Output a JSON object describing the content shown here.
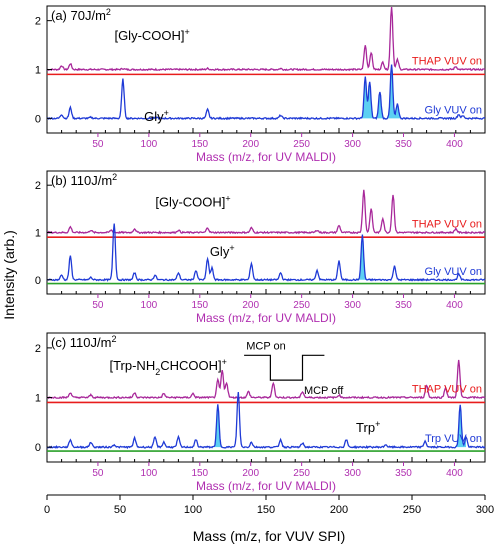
{
  "colors": {
    "thap": "#a8289a",
    "gly": "#1f3ad6",
    "red": "#e81c1c",
    "green": "#2aa02a",
    "fill": "#3fc8f0",
    "top_axis": "#b02fb0"
  },
  "chart_data": {
    "type": "line",
    "xlabel": "Mass (m/z, for VUV SPI)",
    "ylabel": "Intensity (arb.)",
    "xlim": [
      0,
      300
    ],
    "x_ticks": [
      "0",
      "50",
      "100",
      "150",
      "200",
      "250",
      "300"
    ],
    "top_axis_label": "Mass (m/z, for UV MALDI)",
    "top_axis_ticks": [
      "50",
      "100",
      "150",
      "200",
      "250",
      "300",
      "350",
      "400"
    ],
    "panels": [
      {
        "label": "(a) 70J/m",
        "label_sup": "2",
        "ylim": [
          -0.3,
          2.3
        ],
        "y_ticks": [
          "0",
          "1",
          "2"
        ],
        "series": [
          {
            "name": "THAP VUV on",
            "color": "thap",
            "baseline": 1.0,
            "peaks": [
              [
                10,
                0.08
              ],
              [
                16,
                0.12
              ],
              [
                52,
                0.02
              ],
              [
                110,
                0.02
              ],
              [
                160,
                0.02
              ],
              [
                218,
                0.5
              ],
              [
                222,
                0.35
              ],
              [
                230,
                0.15
              ],
              [
                236,
                1.3
              ],
              [
                240,
                0.2
              ],
              [
                280,
                0.06
              ]
            ]
          },
          {
            "name": "Gly VUV on",
            "color": "gly",
            "baseline": 0.0,
            "filled_range": [
              213,
              245
            ],
            "peaks": [
              [
                10,
                0.08
              ],
              [
                16,
                0.22
              ],
              [
                30,
                0.02
              ],
              [
                52,
                0.8
              ],
              [
                75,
                0.02
              ],
              [
                110,
                0.18
              ],
              [
                160,
                0.06
              ],
              [
                218,
                0.85
              ],
              [
                221,
                0.75
              ],
              [
                228,
                0.55
              ],
              [
                236,
                1.1
              ],
              [
                240,
                0.3
              ],
              [
                282,
                0.08
              ],
              [
                285,
                0.05
              ]
            ]
          }
        ],
        "reference_lines": [
          {
            "color": "red",
            "value": 0.9
          }
        ],
        "annotations": [
          {
            "text": "[Gly-COOH]",
            "sup": "+",
            "x": 72,
            "y": 1.6
          },
          {
            "text": "Gly",
            "sup": "+",
            "x": 75,
            "y": -0.05
          }
        ]
      },
      {
        "label": "(b) 110J/m",
        "label_sup": "2",
        "ylim": [
          -0.3,
          2.3
        ],
        "y_ticks": [
          "0",
          "1",
          "2"
        ],
        "series": [
          {
            "name": "THAP VUV on",
            "color": "thap",
            "baseline": 1.0,
            "peaks": [
              [
                16,
                0.12
              ],
              [
                30,
                0.05
              ],
              [
                44,
                0.05
              ],
              [
                60,
                0.08
              ],
              [
                90,
                0.05
              ],
              [
                110,
                0.1
              ],
              [
                140,
                0.1
              ],
              [
                185,
                0.05
              ],
              [
                200,
                0.15
              ],
              [
                217,
                0.9
              ],
              [
                222,
                0.5
              ],
              [
                230,
                0.3
              ],
              [
                237,
                0.8
              ],
              [
                280,
                0.08
              ]
            ]
          },
          {
            "name": "Gly VUV on",
            "color": "gly",
            "baseline": 0.0,
            "filled_range": [
              210,
              222
            ],
            "peaks": [
              [
                10,
                0.1
              ],
              [
                16,
                0.5
              ],
              [
                30,
                0.05
              ],
              [
                46,
                1.2
              ],
              [
                60,
                0.15
              ],
              [
                74,
                0.1
              ],
              [
                90,
                0.15
              ],
              [
                102,
                0.2
              ],
              [
                110,
                0.45
              ],
              [
                113,
                0.25
              ],
              [
                140,
                0.35
              ],
              [
                160,
                0.15
              ],
              [
                185,
                0.2
              ],
              [
                200,
                0.4
              ],
              [
                216,
                0.95
              ],
              [
                238,
                0.3
              ],
              [
                282,
                0.12
              ]
            ]
          }
        ],
        "reference_lines": [
          {
            "color": "red",
            "value": 0.9
          },
          {
            "color": "green",
            "value": -0.08
          }
        ],
        "annotations": [
          {
            "text": "[Gly-COOH]",
            "sup": "+",
            "x": 100,
            "y": 1.55
          },
          {
            "text": "Gly",
            "sup": "+",
            "x": 120,
            "y": 0.5
          }
        ]
      },
      {
        "label": "(c) 110J/m",
        "label_sup": "2",
        "ylim": [
          -0.3,
          2.3
        ],
        "y_ticks": [
          "0",
          "1",
          "2"
        ],
        "series": [
          {
            "name": "THAP VUV on",
            "color": "thap",
            "baseline": 1.0,
            "peaks": [
              [
                16,
                0.1
              ],
              [
                30,
                0.05
              ],
              [
                60,
                0.1
              ],
              [
                80,
                0.08
              ],
              [
                100,
                0.08
              ],
              [
                117,
                0.35
              ],
              [
                120,
                0.55
              ],
              [
                123,
                0.3
              ],
              [
                138,
                0.12
              ],
              [
                155,
                0.3
              ],
              [
                175,
                0.12
              ],
              [
                200,
                0.05
              ],
              [
                260,
                0.25
              ],
              [
                273,
                0.2
              ],
              [
                282,
                0.75
              ]
            ]
          },
          {
            "name": "Trp VUV on",
            "color": "gly",
            "baseline": 0.0,
            "filled_ranges": [
              [
                113,
                122
              ],
              [
                280,
                287
              ]
            ],
            "peaks": [
              [
                16,
                0.15
              ],
              [
                30,
                0.1
              ],
              [
                46,
                0.05
              ],
              [
                60,
                0.18
              ],
              [
                74,
                0.2
              ],
              [
                80,
                0.1
              ],
              [
                90,
                0.2
              ],
              [
                102,
                0.15
              ],
              [
                117,
                0.85
              ],
              [
                131,
                1.1
              ],
              [
                140,
                0.1
              ],
              [
                160,
                0.15
              ],
              [
                175,
                0.08
              ],
              [
                205,
                0.15
              ],
              [
                232,
                0.05
              ],
              [
                259,
                0.12
              ],
              [
                283,
                0.85
              ],
              [
                287,
                0.2
              ]
            ]
          }
        ],
        "reference_lines": [
          {
            "color": "red",
            "value": 0.9
          },
          {
            "color": "green",
            "value": -0.08
          }
        ],
        "annotations": [
          {
            "text": "[Trp-NH",
            "sub": "2",
            "text2": "CHCOOH]",
            "sup": "+",
            "x": 83,
            "y": 1.55
          },
          {
            "text": "Trp",
            "sup": "+",
            "x": 220,
            "y": 0.3
          }
        ],
        "mcp": {
          "on_label": "MCP on",
          "off_label": "MCP off"
        }
      }
    ]
  }
}
